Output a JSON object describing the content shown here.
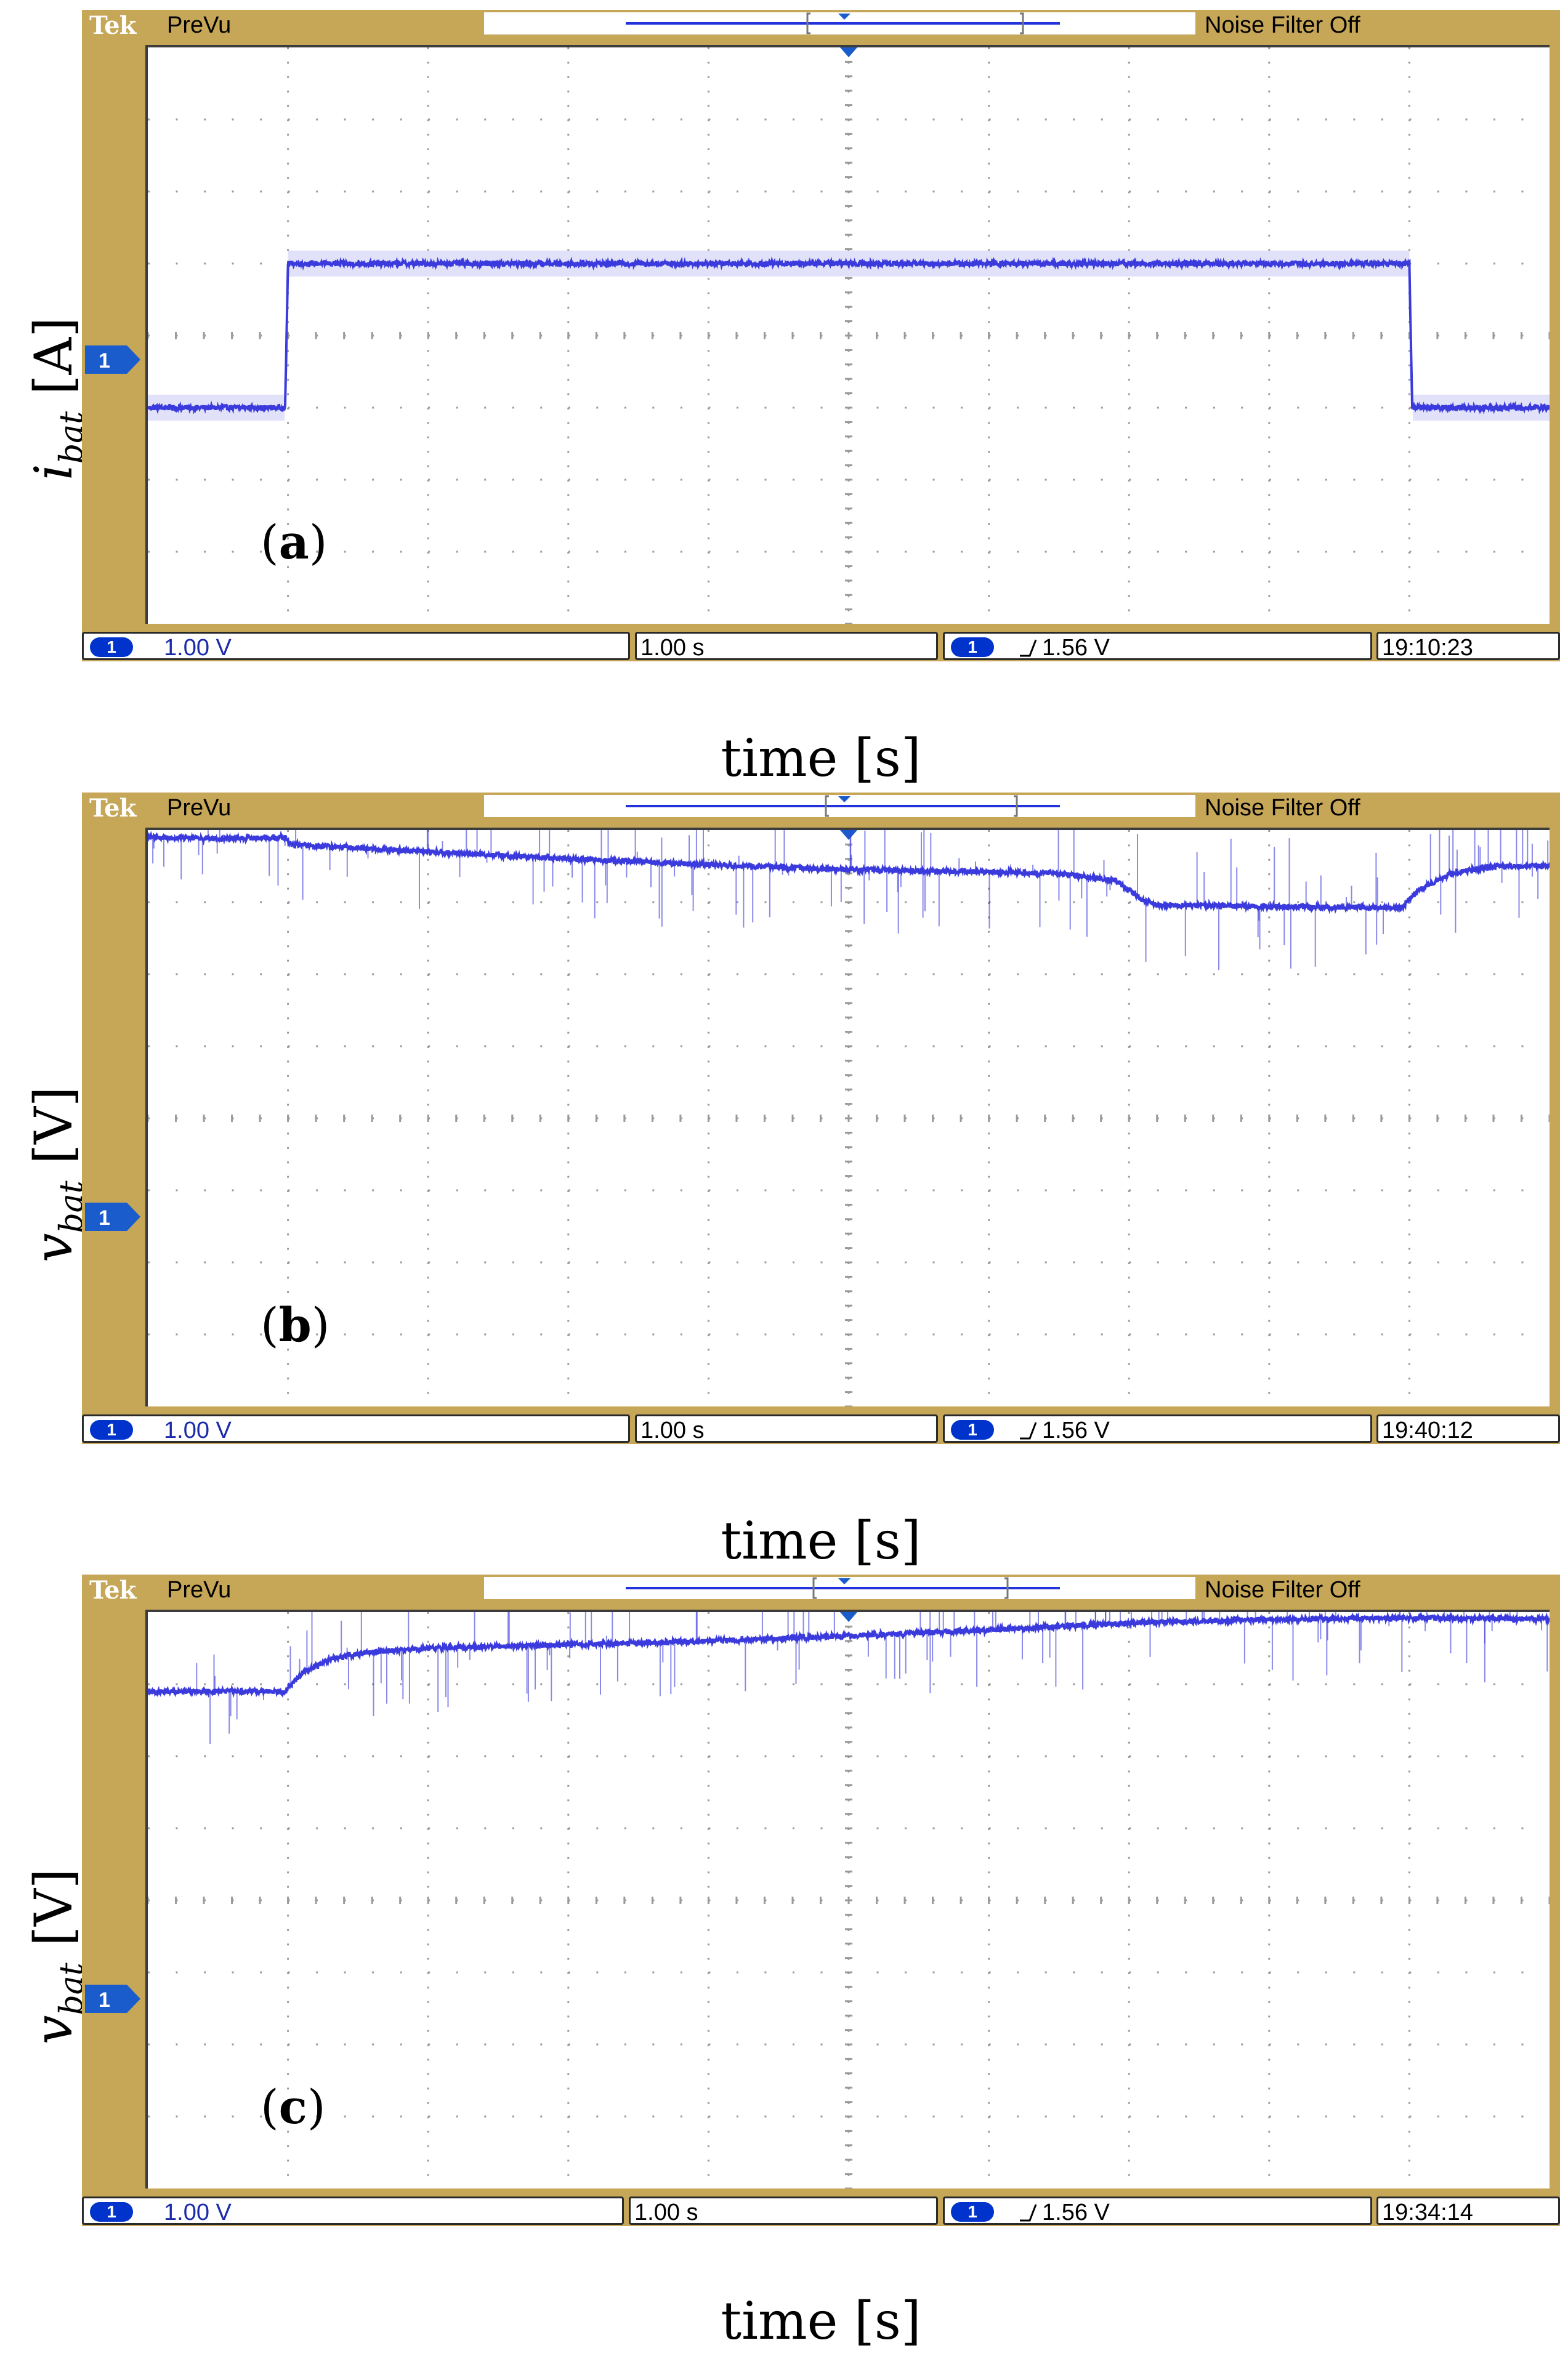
{
  "chart_data": [
    {
      "type": "line",
      "panel_label": "a",
      "ylabel_symbol": "i",
      "ylabel_subscript": "bat",
      "ylabel_unit": "[A]",
      "xlabel": "time [s]",
      "xlim": [
        0,
        10
      ],
      "ylim": [
        -4,
        4
      ],
      "grid": true,
      "series": [
        {
          "x": [
            0,
            0.98,
            0.99,
            1.0,
            9.0,
            9.01,
            9.02,
            10
          ],
          "y": [
            -1,
            -1,
            0.0,
            1,
            1,
            0.0,
            -1,
            -1
          ]
        }
      ],
      "scope": {
        "brand": "Tek",
        "mode": "PreVu",
        "noise_filter": "Noise Filter Off",
        "channel": "1",
        "channel_scale": "1.00 V",
        "time_scale": "1.00 s",
        "trigger": "1.56 V",
        "timestamp": "19:10:23"
      }
    },
    {
      "type": "line",
      "panel_label": "b",
      "ylabel_symbol": "v",
      "ylabel_subscript": "bat",
      "ylabel_unit": "[V]",
      "xlabel": "time [s]",
      "xlim": [
        0,
        10
      ],
      "ylim": [
        -4,
        4
      ],
      "grid": true,
      "series": [
        {
          "x": [
            0,
            0.5,
            0.98,
            1.02,
            2,
            3,
            4,
            5,
            6,
            6.5,
            6.9,
            7.1,
            7.2,
            8,
            8.95,
            9.05,
            9.3,
            9.6,
            10
          ],
          "y": [
            3.9,
            3.88,
            3.9,
            3.8,
            3.7,
            3.6,
            3.52,
            3.45,
            3.42,
            3.4,
            3.3,
            3.03,
            2.96,
            2.94,
            2.92,
            3.15,
            3.4,
            3.5,
            3.5
          ]
        }
      ],
      "scope": {
        "brand": "Tek",
        "mode": "PreVu",
        "noise_filter": "Noise Filter Off",
        "channel": "1",
        "channel_scale": "1.00 V",
        "time_scale": "1.00 s",
        "trigger": "1.56 V",
        "timestamp": "19:40:12"
      }
    },
    {
      "type": "line",
      "panel_label": "c",
      "ylabel_symbol": "v",
      "ylabel_subscript": "bat",
      "ylabel_unit": "[V]",
      "xlabel": "time [s]",
      "xlim": [
        0,
        10
      ],
      "ylim": [
        -4,
        4
      ],
      "grid": true,
      "series": [
        {
          "x": [
            0,
            0.5,
            0.98,
            1.1,
            1.3,
            1.6,
            2,
            3,
            4,
            5,
            6,
            7,
            8,
            9,
            10
          ],
          "y": [
            2.9,
            2.9,
            2.9,
            3.15,
            3.35,
            3.45,
            3.5,
            3.55,
            3.6,
            3.67,
            3.75,
            3.85,
            3.9,
            3.92,
            3.9
          ]
        }
      ],
      "scope": {
        "brand": "Tek",
        "mode": "PreVu",
        "noise_filter": "Noise Filter Off",
        "channel": "1",
        "channel_scale": "1.00 V",
        "time_scale": "1.00 s",
        "trigger": "1.56 V",
        "timestamp": "19:34:14"
      }
    }
  ],
  "colors": {
    "frame": "#c6a657",
    "trace": "#3b3bdd",
    "trace_light": "#c8c8f4",
    "grid": "#9a9a9a",
    "channel_marker": "#1a5ccc"
  }
}
